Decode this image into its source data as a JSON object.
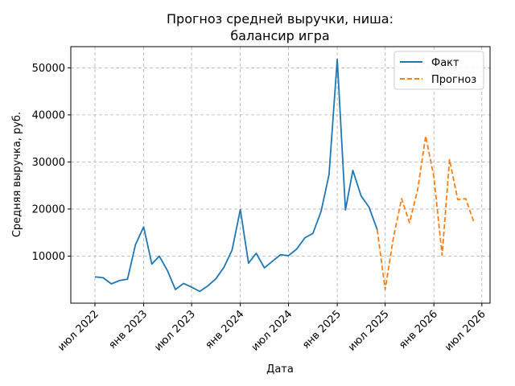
{
  "chart_data": {
    "type": "line",
    "title_lines": [
      "Прогноз средней выручки, ниша:",
      "балансир игра"
    ],
    "xlabel": "Дата",
    "ylabel": "Средняя выручка, руб.",
    "x_tick_labels": [
      {
        "date": "2022-07-01",
        "label": "июл 2022"
      },
      {
        "date": "2023-01-01",
        "label": "янв 2023"
      },
      {
        "date": "2023-07-01",
        "label": "июл 2023"
      },
      {
        "date": "2024-01-01",
        "label": "янв 2024"
      },
      {
        "date": "2024-07-01",
        "label": "июл 2024"
      },
      {
        "date": "2025-01-01",
        "label": "янв 2025"
      },
      {
        "date": "2025-07-01",
        "label": "июл 2025"
      },
      {
        "date": "2026-01-01",
        "label": "янв 2026"
      },
      {
        "date": "2026-07-01",
        "label": "июл 2026"
      }
    ],
    "y_ticks": [
      10000,
      20000,
      30000,
      40000,
      50000
    ],
    "xlim": [
      "2022-04-01",
      "2026-08-01"
    ],
    "ylim": [
      0,
      54500
    ],
    "grid": true,
    "legend_position": "top-right",
    "series": [
      {
        "name": "Факт",
        "color": "#1f77b4",
        "style": "solid",
        "x": [
          "2022-07-01",
          "2022-08-01",
          "2022-09-01",
          "2022-10-01",
          "2022-11-01",
          "2022-12-01",
          "2023-01-01",
          "2023-02-01",
          "2023-03-01",
          "2023-04-01",
          "2023-05-01",
          "2023-06-01",
          "2023-07-01",
          "2023-08-01",
          "2023-09-01",
          "2023-10-01",
          "2023-11-01",
          "2023-12-01",
          "2024-01-01",
          "2024-02-01",
          "2024-03-01",
          "2024-04-01",
          "2024-05-01",
          "2024-06-01",
          "2024-07-01",
          "2024-08-01",
          "2024-09-01",
          "2024-10-01",
          "2024-11-01",
          "2024-12-01",
          "2025-01-01",
          "2025-02-01",
          "2025-03-01",
          "2025-04-01",
          "2025-05-01",
          "2025-06-01"
        ],
        "y": [
          5600,
          5400,
          4100,
          4800,
          5100,
          12400,
          16200,
          8300,
          10000,
          6900,
          2900,
          4200,
          3400,
          2500,
          3700,
          5200,
          7700,
          11300,
          19900,
          8500,
          10600,
          7500,
          8900,
          10300,
          10100,
          11500,
          13900,
          14800,
          19500,
          27300,
          51800,
          19800,
          28200,
          22800,
          20400,
          15600
        ]
      },
      {
        "name": "Прогноз",
        "color": "#ff7f0e",
        "style": "dashed",
        "x": [
          "2025-06-01",
          "2025-07-01",
          "2025-08-01",
          "2025-09-01",
          "2025-10-01",
          "2025-11-01",
          "2025-12-01",
          "2026-01-01",
          "2026-02-01",
          "2026-03-01",
          "2026-04-01",
          "2026-05-01",
          "2026-06-01"
        ],
        "y": [
          15600,
          2900,
          13900,
          22200,
          17100,
          24200,
          35500,
          26800,
          10200,
          30500,
          22000,
          22200,
          17200
        ]
      }
    ]
  }
}
